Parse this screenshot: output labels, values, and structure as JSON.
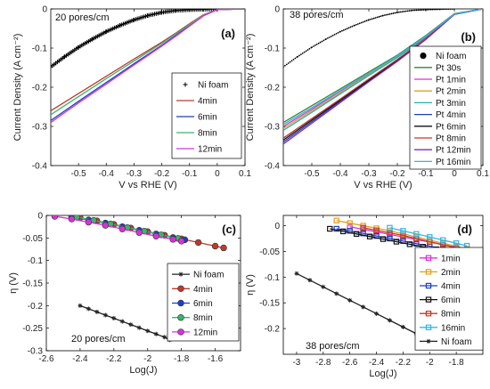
{
  "figure": {
    "title": ""
  },
  "chart_data": [
    {
      "id": "a",
      "type": "line",
      "panel_label": "(a)",
      "annotation": "20 pores/cm",
      "xlabel": "V vs RHE (V)",
      "ylabel": "Current Density (A cm⁻²)",
      "xlim": [
        -0.6,
        0.1
      ],
      "ylim": [
        -0.4,
        0.0
      ],
      "xticks": [
        -0.5,
        -0.4,
        -0.3,
        -0.2,
        -0.1,
        0,
        0.1
      ],
      "xtick_labels": [
        "-0.5",
        "-0.4",
        "-0.3",
        "-0.2",
        "-0.1",
        "0",
        "0.1"
      ],
      "yticks": [
        0,
        -0.1,
        -0.2,
        -0.3,
        -0.4
      ],
      "ytick_labels": [
        "0",
        "-0.1",
        "-0.2",
        "-0.3",
        "-0.4"
      ],
      "legend_position": "right",
      "series": [
        {
          "name": "Ni foam",
          "color": "#000000",
          "marker": "plus",
          "line": false,
          "x": [
            -0.6,
            -0.55,
            -0.5,
            -0.45,
            -0.4,
            -0.35,
            -0.3,
            -0.25,
            -0.2,
            -0.15,
            -0.1,
            -0.05,
            0.0
          ],
          "y": [
            -0.148,
            -0.122,
            -0.098,
            -0.077,
            -0.058,
            -0.042,
            -0.028,
            -0.017,
            -0.009,
            -0.004,
            -0.002,
            -0.001,
            0.0
          ]
        },
        {
          "name": "4min",
          "color": "#c0392b",
          "x": [
            -0.6,
            -0.5,
            -0.4,
            -0.3,
            -0.2,
            -0.15,
            -0.1,
            -0.05,
            0.0,
            0.1
          ],
          "y": [
            -0.26,
            -0.216,
            -0.172,
            -0.128,
            -0.085,
            -0.062,
            -0.038,
            -0.015,
            -0.002,
            0.0
          ]
        },
        {
          "name": "6min",
          "color": "#1f3fbf",
          "x": [
            -0.6,
            -0.5,
            -0.4,
            -0.3,
            -0.2,
            -0.15,
            -0.1,
            -0.05,
            0.0,
            0.1
          ],
          "y": [
            -0.285,
            -0.236,
            -0.188,
            -0.14,
            -0.093,
            -0.068,
            -0.042,
            -0.017,
            -0.002,
            0.0
          ]
        },
        {
          "name": "8min",
          "color": "#3cb371",
          "x": [
            -0.6,
            -0.5,
            -0.4,
            -0.3,
            -0.2,
            -0.15,
            -0.1,
            -0.05,
            0.0,
            0.1
          ],
          "y": [
            -0.27,
            -0.224,
            -0.178,
            -0.133,
            -0.088,
            -0.064,
            -0.04,
            -0.016,
            -0.002,
            0.0
          ]
        },
        {
          "name": "12min",
          "color": "#d633d6",
          "x": [
            -0.6,
            -0.5,
            -0.4,
            -0.3,
            -0.2,
            -0.15,
            -0.1,
            -0.05,
            0.0,
            0.1
          ],
          "y": [
            -0.29,
            -0.24,
            -0.192,
            -0.143,
            -0.095,
            -0.07,
            -0.044,
            -0.018,
            -0.002,
            0.0
          ]
        }
      ]
    },
    {
      "id": "b",
      "type": "line",
      "panel_label": "(b)",
      "annotation": "38 pores/cm",
      "xlabel": "V vs RHE (V)",
      "ylabel": "Current Density (A cm⁻²)",
      "xlim": [
        -0.6,
        0.1
      ],
      "ylim": [
        -0.4,
        0.0
      ],
      "xticks": [
        -0.5,
        -0.4,
        -0.3,
        -0.2,
        -0.1,
        0,
        0.1
      ],
      "xtick_labels": [
        "-0.5",
        "-0.4",
        "-0.3",
        "-0.2",
        "-0.1",
        "0",
        "0.1"
      ],
      "yticks": [
        0,
        -0.1,
        -0.2,
        -0.3,
        -0.4
      ],
      "ytick_labels": [
        "0",
        "-0.1",
        "-0.2",
        "-0.3",
        "-0.4"
      ],
      "legend_position": "right",
      "series": [
        {
          "name": "Ni foam",
          "color": "#000000",
          "marker": "dot",
          "line": false,
          "x": [
            -0.6,
            -0.55,
            -0.5,
            -0.45,
            -0.4,
            -0.35,
            -0.3,
            -0.25,
            -0.2,
            -0.15,
            -0.1,
            -0.05,
            0.0
          ],
          "y": [
            -0.148,
            -0.122,
            -0.098,
            -0.077,
            -0.058,
            -0.042,
            -0.028,
            -0.017,
            -0.009,
            -0.004,
            -0.002,
            -0.001,
            0.0
          ]
        },
        {
          "name": "Pt 30s",
          "color": "#2e8b2e",
          "x": [
            -0.6,
            -0.5,
            -0.4,
            -0.3,
            -0.2,
            -0.1,
            -0.05,
            0.0,
            0.1
          ],
          "y": [
            -0.29,
            -0.247,
            -0.204,
            -0.161,
            -0.118,
            -0.068,
            -0.04,
            -0.012,
            0.0
          ]
        },
        {
          "name": "Pt 1min",
          "color": "#d633d6",
          "x": [
            -0.6,
            -0.5,
            -0.4,
            -0.3,
            -0.2,
            -0.1,
            -0.05,
            0.0,
            0.1
          ],
          "y": [
            -0.3,
            -0.256,
            -0.21,
            -0.165,
            -0.12,
            -0.07,
            -0.042,
            -0.013,
            0.0
          ]
        },
        {
          "name": "Pt 2min",
          "color": "#e0a020",
          "x": [
            -0.6,
            -0.5,
            -0.4,
            -0.3,
            -0.2,
            -0.1,
            -0.05,
            0.0,
            0.1
          ],
          "y": [
            -0.305,
            -0.26,
            -0.214,
            -0.168,
            -0.122,
            -0.071,
            -0.043,
            -0.013,
            0.0
          ]
        },
        {
          "name": "Pt 3min",
          "color": "#20b2aa",
          "x": [
            -0.6,
            -0.5,
            -0.4,
            -0.3,
            -0.2,
            -0.1,
            -0.05,
            0.0,
            0.1
          ],
          "y": [
            -0.31,
            -0.264,
            -0.217,
            -0.17,
            -0.124,
            -0.072,
            -0.043,
            -0.013,
            0.0
          ]
        },
        {
          "name": "Pt 4min",
          "color": "#1f3fbf",
          "x": [
            -0.6,
            -0.5,
            -0.4,
            -0.3,
            -0.2,
            -0.1,
            -0.05,
            0.0,
            0.1
          ],
          "y": [
            -0.34,
            -0.288,
            -0.236,
            -0.184,
            -0.133,
            -0.077,
            -0.046,
            -0.014,
            0.0
          ]
        },
        {
          "name": "Pt 6min",
          "color": "#111111",
          "x": [
            -0.6,
            -0.5,
            -0.4,
            -0.3,
            -0.2,
            -0.1,
            -0.05,
            0.0,
            0.1
          ],
          "y": [
            -0.335,
            -0.284,
            -0.233,
            -0.182,
            -0.131,
            -0.076,
            -0.045,
            -0.014,
            0.0
          ]
        },
        {
          "name": "Pt 8min",
          "color": "#c0392b",
          "x": [
            -0.6,
            -0.5,
            -0.4,
            -0.3,
            -0.2,
            -0.1,
            -0.05,
            0.0,
            0.1
          ],
          "y": [
            -0.33,
            -0.28,
            -0.23,
            -0.179,
            -0.129,
            -0.075,
            -0.045,
            -0.014,
            0.0
          ]
        },
        {
          "name": "Pt 12min",
          "color": "#7b2fbf",
          "x": [
            -0.6,
            -0.5,
            -0.4,
            -0.3,
            -0.2,
            -0.1,
            -0.05,
            0.0,
            0.1
          ],
          "y": [
            -0.345,
            -0.292,
            -0.239,
            -0.186,
            -0.134,
            -0.078,
            -0.046,
            -0.014,
            0.0
          ]
        },
        {
          "name": "Pt 16min",
          "color": "#33b5e5",
          "x": [
            -0.6,
            -0.5,
            -0.4,
            -0.3,
            -0.2,
            -0.1,
            -0.05,
            0.0,
            0.1
          ],
          "y": [
            -0.295,
            -0.252,
            -0.208,
            -0.164,
            -0.12,
            -0.07,
            -0.042,
            -0.013,
            0.0
          ]
        }
      ]
    },
    {
      "id": "c",
      "type": "line",
      "panel_label": "(c)",
      "annotation": "20 pores/cm",
      "xlabel": "Log(J)",
      "ylabel": "η (V)",
      "xlim": [
        -2.6,
        -1.45
      ],
      "ylim": [
        -0.3,
        0.0
      ],
      "xticks": [
        -2.6,
        -2.4,
        -2.2,
        -2.0,
        -1.8,
        -1.6
      ],
      "xtick_labels": [
        "-2.6",
        "-2.4",
        "-2.2",
        "-2",
        "-1.8",
        "-1.6"
      ],
      "yticks": [
        0,
        -0.05,
        -0.1,
        -0.15,
        -0.2,
        -0.25,
        -0.3
      ],
      "ytick_labels": [
        "0",
        "-0.05",
        "-0.1",
        "-0.15",
        "-0.2",
        "-0.25",
        "-0.3"
      ],
      "legend_position": "right",
      "series": [
        {
          "name": "Ni foam",
          "color": "#222222",
          "marker": "star",
          "x": [
            -2.4,
            -2.35,
            -2.3,
            -2.25,
            -2.2,
            -2.15,
            -2.1,
            -2.05,
            -2.0,
            -1.95,
            -1.9,
            -1.87
          ],
          "y": [
            -0.2,
            -0.207,
            -0.214,
            -0.221,
            -0.228,
            -0.235,
            -0.242,
            -0.249,
            -0.256,
            -0.263,
            -0.27,
            -0.276
          ]
        },
        {
          "name": "4min",
          "color": "#c0392b",
          "marker": "circle",
          "x": [
            -2.4,
            -2.3,
            -2.2,
            -2.1,
            -2.0,
            -1.9,
            -1.8,
            -1.7,
            -1.6,
            -1.55
          ],
          "y": [
            -0.005,
            -0.012,
            -0.02,
            -0.028,
            -0.036,
            -0.044,
            -0.052,
            -0.06,
            -0.068,
            -0.072
          ]
        },
        {
          "name": "6min",
          "color": "#1f3fbf",
          "marker": "circle",
          "x": [
            -2.45,
            -2.35,
            -2.25,
            -2.15,
            -2.05,
            -1.95,
            -1.85,
            -1.78
          ],
          "y": [
            -0.003,
            -0.01,
            -0.017,
            -0.025,
            -0.033,
            -0.041,
            -0.049,
            -0.054
          ]
        },
        {
          "name": "8min",
          "color": "#3cb371",
          "marker": "circle",
          "x": [
            -2.42,
            -2.32,
            -2.22,
            -2.12,
            -2.02,
            -1.92,
            -1.82
          ],
          "y": [
            -0.004,
            -0.011,
            -0.019,
            -0.027,
            -0.035,
            -0.043,
            -0.051
          ]
        },
        {
          "name": "12min",
          "color": "#d633d6",
          "marker": "circle",
          "x": [
            -2.55,
            -2.45,
            -2.35,
            -2.25,
            -2.15,
            -2.05,
            -1.95,
            -1.85,
            -1.8
          ],
          "y": [
            -0.002,
            -0.008,
            -0.015,
            -0.022,
            -0.03,
            -0.038,
            -0.046,
            -0.053,
            -0.057
          ]
        }
      ]
    },
    {
      "id": "d",
      "type": "line",
      "panel_label": "(d)",
      "annotation": "38 pores/cm",
      "xlabel": "Log(J)",
      "ylabel": "η (V)",
      "xlim": [
        -3.1,
        -1.6
      ],
      "ylim": [
        -0.25,
        0.02
      ],
      "xticks": [
        -3.0,
        -2.8,
        -2.6,
        -2.4,
        -2.2,
        -2.0,
        -1.8
      ],
      "xtick_labels": [
        "-3",
        "-2.8",
        "-2.6",
        "-2.4",
        "-2.2",
        "-2",
        "-1.8"
      ],
      "yticks": [
        0,
        -0.05,
        -0.1,
        -0.15,
        -0.2
      ],
      "ytick_labels": [
        "0",
        "-0.05",
        "-0.1",
        "-0.15",
        "-0.2"
      ],
      "legend_position": "right",
      "series": [
        {
          "name": "1min",
          "color": "#d633d6",
          "marker": "square",
          "x": [
            -2.6,
            -2.5,
            -2.4,
            -2.3,
            -2.2,
            -2.1,
            -2.0,
            -1.9,
            -1.8,
            -1.72
          ],
          "y": [
            -0.002,
            -0.007,
            -0.012,
            -0.017,
            -0.022,
            -0.027,
            -0.032,
            -0.037,
            -0.042,
            -0.046
          ]
        },
        {
          "name": "2min",
          "color": "#e0a020",
          "marker": "square",
          "x": [
            -2.7,
            -2.6,
            -2.5,
            -2.4,
            -2.3,
            -2.2,
            -2.1,
            -2.0,
            -1.9,
            -1.8,
            -1.72
          ],
          "y": [
            0.01,
            0.005,
            0.0,
            -0.005,
            -0.01,
            -0.016,
            -0.022,
            -0.028,
            -0.034,
            -0.04,
            -0.045
          ]
        },
        {
          "name": "4min",
          "color": "#1f3fbf",
          "marker": "square",
          "x": [
            -2.7,
            -2.6,
            -2.5,
            -2.4,
            -2.3,
            -2.2,
            -2.1,
            -2.0,
            -1.9,
            -1.82
          ],
          "y": [
            -0.006,
            -0.01,
            -0.015,
            -0.02,
            -0.025,
            -0.03,
            -0.035,
            -0.04,
            -0.045,
            -0.049
          ]
        },
        {
          "name": "6min",
          "color": "#111111",
          "marker": "square",
          "x": [
            -2.75,
            -2.65,
            -2.55,
            -2.45,
            -2.35,
            -2.25,
            -2.15,
            -2.05,
            -1.95,
            -1.85
          ],
          "y": [
            -0.006,
            -0.011,
            -0.016,
            -0.021,
            -0.026,
            -0.031,
            -0.036,
            -0.041,
            -0.046,
            -0.051
          ]
        },
        {
          "name": "8min",
          "color": "#c0392b",
          "marker": "square",
          "x": [
            -2.5,
            -2.4,
            -2.3,
            -2.2,
            -2.1,
            -2.0,
            -1.9,
            -1.8,
            -1.72
          ],
          "y": [
            -0.004,
            -0.009,
            -0.014,
            -0.019,
            -0.025,
            -0.031,
            -0.037,
            -0.043,
            -0.047
          ]
        },
        {
          "name": "16min",
          "color": "#33b5e5",
          "marker": "square",
          "x": [
            -2.3,
            -2.2,
            -2.1,
            -2.0,
            -1.9,
            -1.8,
            -1.72
          ],
          "y": [
            -0.004,
            -0.01,
            -0.016,
            -0.022,
            -0.028,
            -0.034,
            -0.039
          ]
        },
        {
          "name": "Ni foam",
          "color": "#222222",
          "marker": "star",
          "x": [
            -3.0,
            -2.9,
            -2.8,
            -2.7,
            -2.6,
            -2.5,
            -2.4,
            -2.3,
            -2.2,
            -2.1,
            -2.0
          ],
          "y": [
            -0.093,
            -0.106,
            -0.119,
            -0.132,
            -0.145,
            -0.158,
            -0.171,
            -0.184,
            -0.197,
            -0.21,
            -0.222
          ]
        }
      ]
    }
  ]
}
